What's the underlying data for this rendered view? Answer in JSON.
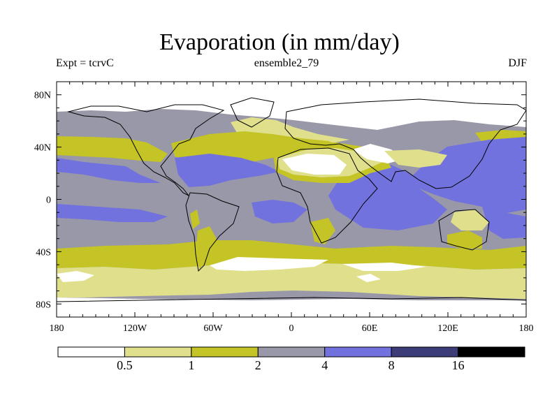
{
  "title": "Evaporation (in mm/day)",
  "experiment_label": "Expt = tcrvC",
  "run_label": "ensemble2_79",
  "season_label": "DJF",
  "colors": {
    "band_0": "#ffffff",
    "band_1": "#e0e08c",
    "band_2": "#c4c426",
    "band_3": "#9898a8",
    "band_4": "#7272de",
    "band_5": "#3c3c78",
    "band_6": "#000000"
  },
  "chart_data": {
    "type": "heatmap",
    "title": "Evaporation (in mm/day)",
    "x_axis": {
      "range": [
        -180,
        180
      ],
      "ticks": [
        "180",
        "120W",
        "60W",
        "0",
        "60E",
        "120E",
        "180"
      ]
    },
    "y_axis": {
      "range": [
        -90,
        90
      ],
      "ticks": [
        "80N",
        "40N",
        "0",
        "40S",
        "80S"
      ]
    },
    "colorbar": {
      "levels": [
        "0.5",
        "1",
        "2",
        "4",
        "8",
        "16"
      ],
      "bands": [
        "<0.5",
        "0.5-1",
        "1-2",
        "2-4",
        "4-8",
        "8-16",
        ">16"
      ]
    }
  }
}
